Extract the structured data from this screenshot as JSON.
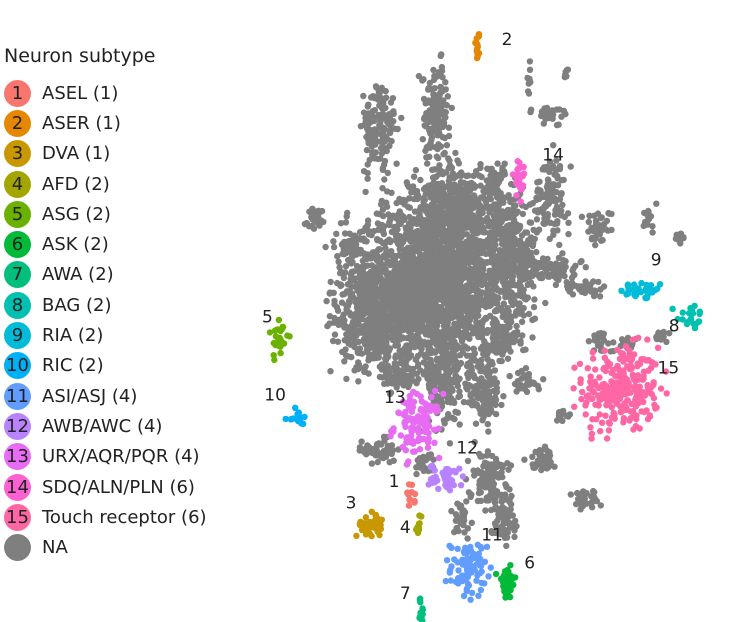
{
  "chart_data": {
    "type": "scatter",
    "title": "",
    "legend_title": "Neuron subtype",
    "legend_position": "left",
    "grid": false,
    "categories": [
      {
        "id": "1",
        "name": "ASEL (1)",
        "color": "#F8766D"
      },
      {
        "id": "2",
        "name": "ASER (1)",
        "color": "#E58700"
      },
      {
        "id": "3",
        "name": "DVA (1)",
        "color": "#C99800"
      },
      {
        "id": "4",
        "name": "AFD (2)",
        "color": "#A3A500"
      },
      {
        "id": "5",
        "name": "ASG (2)",
        "color": "#6BB100"
      },
      {
        "id": "6",
        "name": "ASK (2)",
        "color": "#00BA38"
      },
      {
        "id": "7",
        "name": "AWA (2)",
        "color": "#00BF7D"
      },
      {
        "id": "8",
        "name": "BAG (2)",
        "color": "#00C0AF"
      },
      {
        "id": "9",
        "name": "RIA (2)",
        "color": "#00BCD8"
      },
      {
        "id": "10",
        "name": "RIC (2)",
        "color": "#00B0F6"
      },
      {
        "id": "11",
        "name": "ASI/ASJ (4)",
        "color": "#619CFF"
      },
      {
        "id": "12",
        "name": "AWB/AWC (4)",
        "color": "#B983FF"
      },
      {
        "id": "13",
        "name": "URX/AQR/PQR (4)",
        "color": "#E76BF3"
      },
      {
        "id": "14",
        "name": "SDQ/ALN/PLN (6)",
        "color": "#FD61D1"
      },
      {
        "id": "15",
        "name": "Touch receptor (6)",
        "color": "#FF67A4"
      },
      {
        "id": "NA",
        "name": "NA",
        "color": "#7F7F7F"
      }
    ],
    "xlim": [
      0,
      100
    ],
    "ylim": [
      0,
      100
    ],
    "clusters": [
      {
        "id": "2",
        "x": 47.6,
        "y": 96.6,
        "sx": 0.3,
        "sy": 1.5,
        "n": 14,
        "label_x": 53.0,
        "label_y": 97.0
      },
      {
        "id": "14",
        "x": 57.0,
        "y": 72.9,
        "sx": 0.8,
        "sy": 2.3,
        "n": 22,
        "label_x": 62.0,
        "label_y": 76.3
      },
      {
        "id": "9",
        "x": 84.3,
        "y": 53.1,
        "sx": 2.5,
        "sy": 0.8,
        "n": 35,
        "label_x": 86.0,
        "label_y": 57.6
      },
      {
        "id": "8",
        "x": 94.7,
        "y": 48.5,
        "sx": 1.5,
        "sy": 1.2,
        "n": 20,
        "label_x": 90.0,
        "label_y": 45.8
      },
      {
        "id": "5",
        "x": 3.8,
        "y": 44.6,
        "sx": 1.0,
        "sy": 2.2,
        "n": 28,
        "label_x": 0.0,
        "label_y": 47.4
      },
      {
        "id": "15",
        "x": 79.5,
        "y": 35.5,
        "sx": 4.2,
        "sy": 3.8,
        "n": 260,
        "label_x": 87.5,
        "label_y": 38.3
      },
      {
        "id": "10",
        "x": 7.5,
        "y": 30.4,
        "sx": 1.3,
        "sy": 0.7,
        "n": 14,
        "label_x": 0.5,
        "label_y": 33.5
      },
      {
        "id": "13",
        "x": 34.5,
        "y": 29.1,
        "sx": 2.6,
        "sy": 2.8,
        "n": 110,
        "label_x": 27.0,
        "label_y": 33.0
      },
      {
        "id": "12",
        "x": 40.8,
        "y": 19.7,
        "sx": 1.9,
        "sy": 1.2,
        "n": 45,
        "label_x": 43.0,
        "label_y": 24.0
      },
      {
        "id": "1",
        "x": 32.8,
        "y": 16.2,
        "sx": 0.5,
        "sy": 1.1,
        "n": 12,
        "label_x": 28.0,
        "label_y": 18.0
      },
      {
        "id": "3",
        "x": 24.0,
        "y": 11.4,
        "sx": 1.5,
        "sy": 1.1,
        "n": 40,
        "label_x": 18.5,
        "label_y": 14.2
      },
      {
        "id": "4",
        "x": 34.8,
        "y": 11.4,
        "sx": 0.3,
        "sy": 1.0,
        "n": 10,
        "label_x": 30.5,
        "label_y": 9.8
      },
      {
        "id": "11",
        "x": 45.7,
        "y": 3.4,
        "sx": 2.0,
        "sy": 2.5,
        "n": 80,
        "label_x": 48.5,
        "label_y": 8.5
      },
      {
        "id": "6",
        "x": 54.2,
        "y": 0.8,
        "sx": 1.0,
        "sy": 1.5,
        "n": 40,
        "label_x": 58.0,
        "label_y": 3.5
      },
      {
        "id": "7",
        "x": 35.3,
        "y": -4.7,
        "sx": 0.6,
        "sy": 1.5,
        "n": 14,
        "label_x": 30.5,
        "label_y": -2.0
      },
      {
        "id": "NA",
        "x": 37.0,
        "y": 54.0,
        "sx": 9.0,
        "sy": 7.0,
        "n": 2200
      },
      {
        "id": "NA",
        "x": 25.0,
        "y": 48.0,
        "sx": 4.0,
        "sy": 4.0,
        "n": 350
      },
      {
        "id": "NA",
        "x": 43.0,
        "y": 68.0,
        "sx": 5.0,
        "sy": 4.0,
        "n": 450
      },
      {
        "id": "NA",
        "x": 55.0,
        "y": 59.0,
        "sx": 3.0,
        "sy": 6.0,
        "n": 300
      },
      {
        "id": "NA",
        "x": 26.0,
        "y": 82.0,
        "sx": 2.0,
        "sy": 4.0,
        "n": 150
      },
      {
        "id": "NA",
        "x": 38.5,
        "y": 85.0,
        "sx": 1.5,
        "sy": 4.0,
        "n": 140
      },
      {
        "id": "NA",
        "x": 64.0,
        "y": 70.0,
        "sx": 2.0,
        "sy": 3.5,
        "n": 110
      },
      {
        "id": "NA",
        "x": 20.0,
        "y": 61.0,
        "sx": 1.5,
        "sy": 1.2,
        "n": 40
      },
      {
        "id": "NA",
        "x": 63.0,
        "y": 57.0,
        "sx": 3.5,
        "sy": 1.2,
        "n": 80
      },
      {
        "id": "NA",
        "x": 53.0,
        "y": 44.0,
        "sx": 2.5,
        "sy": 2.0,
        "n": 90
      },
      {
        "id": "NA",
        "x": 30.0,
        "y": 37.5,
        "sx": 2.0,
        "sy": 1.2,
        "n": 60
      },
      {
        "id": "NA",
        "x": 40.0,
        "y": 38.0,
        "sx": 2.0,
        "sy": 5.0,
        "n": 220
      },
      {
        "id": "NA",
        "x": 49.0,
        "y": 35.0,
        "sx": 2.0,
        "sy": 3.0,
        "n": 120
      },
      {
        "id": "NA",
        "x": 58.5,
        "y": 37.0,
        "sx": 1.5,
        "sy": 1.0,
        "n": 30
      },
      {
        "id": "NA",
        "x": 26.0,
        "y": 24.5,
        "sx": 1.8,
        "sy": 1.2,
        "n": 50
      },
      {
        "id": "NA",
        "x": 36.0,
        "y": 22.0,
        "sx": 1.0,
        "sy": 1.0,
        "n": 25
      },
      {
        "id": "NA",
        "x": 50.0,
        "y": 20.0,
        "sx": 2.2,
        "sy": 2.5,
        "n": 100
      },
      {
        "id": "NA",
        "x": 44.0,
        "y": 12.0,
        "sx": 1.0,
        "sy": 1.5,
        "n": 30
      },
      {
        "id": "NA",
        "x": 53.5,
        "y": 13.0,
        "sx": 1.5,
        "sy": 2.5,
        "n": 70
      },
      {
        "id": "NA",
        "x": 61.5,
        "y": 23.0,
        "sx": 1.5,
        "sy": 1.0,
        "n": 35
      },
      {
        "id": "NA",
        "x": 71.5,
        "y": 16.0,
        "sx": 1.5,
        "sy": 1.0,
        "n": 30
      },
      {
        "id": "NA",
        "x": 74.5,
        "y": 44.0,
        "sx": 1.5,
        "sy": 1.0,
        "n": 30
      },
      {
        "id": "NA",
        "x": 66.5,
        "y": 31.0,
        "sx": 1.0,
        "sy": 0.8,
        "n": 15
      },
      {
        "id": "NA",
        "x": 81.0,
        "y": 43.5,
        "sx": 1.0,
        "sy": 0.8,
        "n": 20
      },
      {
        "id": "NA",
        "x": 71.0,
        "y": 53.5,
        "sx": 2.5,
        "sy": 0.8,
        "n": 40
      },
      {
        "id": "NA",
        "x": 11.5,
        "y": 66.0,
        "sx": 1.0,
        "sy": 1.0,
        "n": 25
      },
      {
        "id": "NA",
        "x": 74.5,
        "y": 64.5,
        "sx": 1.5,
        "sy": 1.5,
        "n": 40
      },
      {
        "id": "NA",
        "x": 93.0,
        "y": 62.5,
        "sx": 1.2,
        "sy": 0.4,
        "n": 12
      },
      {
        "id": "NA",
        "x": 85.5,
        "y": 66.0,
        "sx": 0.8,
        "sy": 1.5,
        "n": 15
      },
      {
        "id": "NA",
        "x": 88.0,
        "y": 45.0,
        "sx": 1.0,
        "sy": 0.6,
        "n": 15
      },
      {
        "id": "NA",
        "x": 67.5,
        "y": 92.0,
        "sx": 0.4,
        "sy": 0.6,
        "n": 6
      },
      {
        "id": "NA",
        "x": 63.0,
        "y": 84.5,
        "sx": 2.2,
        "sy": 0.8,
        "n": 25
      },
      {
        "id": "NA",
        "x": 59.0,
        "y": 91.0,
        "sx": 0.3,
        "sy": 1.5,
        "n": 10
      },
      {
        "id": "NA",
        "x": 52.0,
        "y": 72.5,
        "sx": 1.2,
        "sy": 2.0,
        "n": 40
      }
    ]
  }
}
